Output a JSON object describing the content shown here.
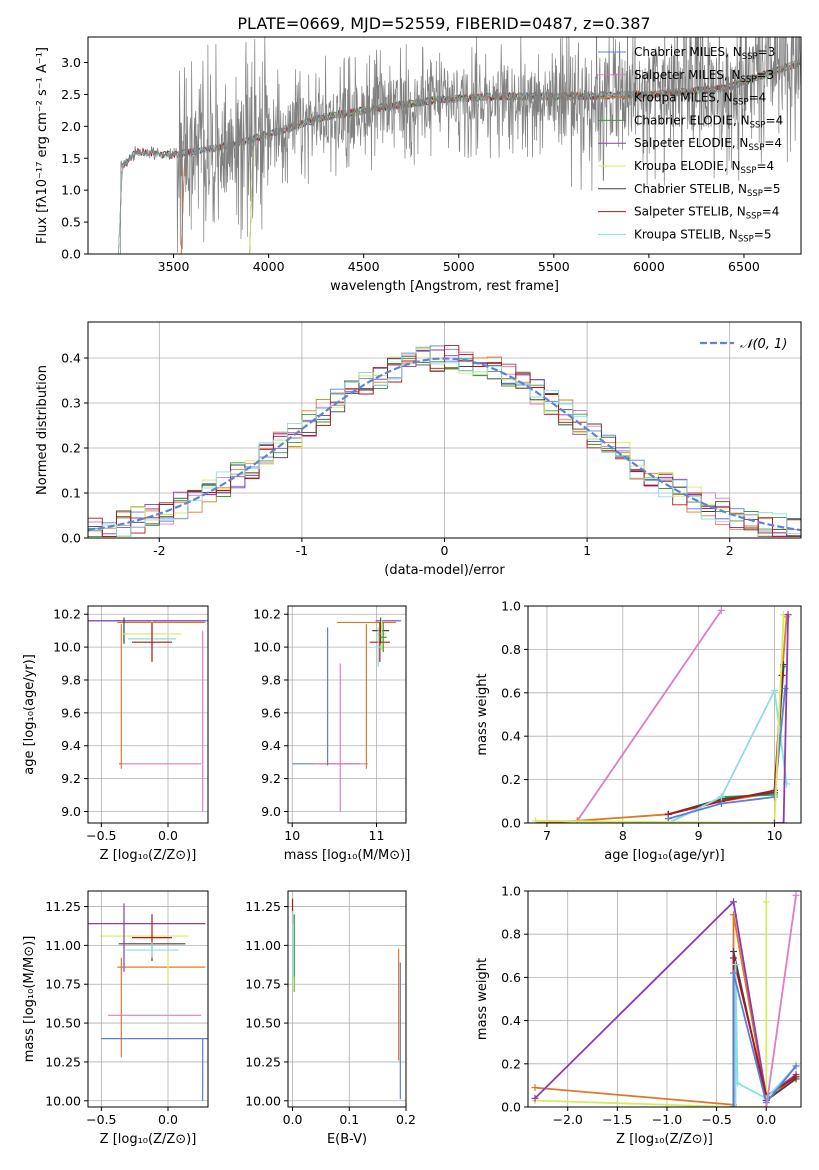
{
  "figure": {
    "title": "PLATE=0669, MJD=52559, FIBERID=0487, z=0.387"
  },
  "chart_data": [
    {
      "id": "spectrum",
      "type": "line",
      "xlabel": "wavelength [Angstrom, rest frame]",
      "ylabel": "Flux [fλ10⁻¹⁷ erg cm⁻² s⁻¹ A⁻¹]",
      "xlim": [
        3050,
        6800
      ],
      "ylim": [
        0,
        3.4
      ],
      "xticks": [
        3500,
        4000,
        4500,
        5000,
        5500,
        6000,
        6500
      ],
      "yticks": [
        0.0,
        0.5,
        1.0,
        1.5,
        2.0,
        2.5,
        3.0
      ],
      "grid": false,
      "legend_position": "top-right",
      "data_color": "#808080",
      "data_start": 3210,
      "data_end": 6800,
      "continuum": [
        [
          3210,
          1.3
        ],
        [
          3300,
          1.6
        ],
        [
          3500,
          1.55
        ],
        [
          3800,
          1.7
        ],
        [
          4000,
          1.88
        ],
        [
          4300,
          2.15
        ],
        [
          4600,
          2.3
        ],
        [
          4900,
          2.42
        ],
        [
          5200,
          2.47
        ],
        [
          5600,
          2.47
        ],
        [
          6000,
          2.5
        ],
        [
          6400,
          2.6
        ],
        [
          6800,
          3.0
        ]
      ],
      "series": [
        {
          "name": "Chabrier MILES, N",
          "sub": "SSP",
          "count": "=3",
          "color": "#5b7fd6",
          "start": 3540
        },
        {
          "name": "Salpeter MILES, N",
          "sub": "SSP",
          "count": "=3",
          "color": "#e07bc4",
          "start": 3540
        },
        {
          "name": "Kroupa MILES, N",
          "sub": "SSP",
          "count": "=4",
          "color": "#e0782a",
          "start": 3540
        },
        {
          "name": "Chabrier ELODIE, N",
          "sub": "SSP",
          "count": "=4",
          "color": "#3c9a3c",
          "start": 3900
        },
        {
          "name": "Salpeter ELODIE, N",
          "sub": "SSP",
          "count": "=4",
          "color": "#8a3cb4",
          "start": 3900
        },
        {
          "name": "Kroupa ELODIE, N",
          "sub": "SSP",
          "count": "=4",
          "color": "#d6ec5c",
          "start": 3900
        },
        {
          "name": "Chabrier STELIB, N",
          "sub": "SSP",
          "count": "=5",
          "color": "#444444",
          "start": 3210
        },
        {
          "name": "Salpeter STELIB, N",
          "sub": "SSP",
          "count": "=4",
          "color": "#b01818",
          "start": 3210
        },
        {
          "name": "Kroupa STELIB, N",
          "sub": "SSP",
          "count": "=5",
          "color": "#8ae0e0",
          "start": 3210
        }
      ]
    },
    {
      "id": "residuals",
      "type": "line",
      "xlabel": "(data-model)/error",
      "ylabel": "Normed distribution",
      "xlim": [
        -2.5,
        2.5
      ],
      "ylim": [
        0,
        0.48
      ],
      "xticks": [
        -2,
        -1,
        0,
        1,
        2
      ],
      "yticks": [
        0.0,
        0.1,
        0.2,
        0.3,
        0.4
      ],
      "grid": true,
      "legend_position": "top-right",
      "normal_curve_label": "𝒩(0, 1)",
      "normal_curve_color": "#5b86d6",
      "bin_width": 0.1
    },
    {
      "id": "age-vs-z",
      "type": "scatter",
      "xlabel": "Z [log₁₀(Z/Z⊙)]",
      "ylabel": "age  [log₁₀(age/yr)]",
      "xlim": [
        -0.6,
        0.3
      ],
      "ylim": [
        8.93,
        10.25
      ],
      "xticks": [
        -0.5,
        0.0
      ],
      "xticklabels": [
        "−0.5",
        "0.0"
      ],
      "yticks": [
        9.0,
        9.2,
        9.4,
        9.6,
        9.8,
        10.0,
        10.2
      ],
      "yticklabels": [
        "9.0",
        "9.2",
        "9.4",
        "9.6",
        "9.8",
        "10.0",
        "10.2"
      ],
      "grid": true,
      "points": [
        {
          "x": -0.2,
          "y": 10.16,
          "xerr": 0.5,
          "yerr": 0.0,
          "color": "#5b7fd6"
        },
        {
          "x": -0.18,
          "y": 10.16,
          "xerr": 0.46,
          "yerr": 0.0,
          "color": "#8a3cb4"
        },
        {
          "x": -0.05,
          "y": 10.15,
          "xerr": 0.33,
          "yerr": 0.0,
          "color": "#e0782a"
        },
        {
          "x": -0.33,
          "y": 10.1,
          "xerr": 0.0,
          "yerr": 0.08,
          "color": "#444444"
        },
        {
          "x": -0.12,
          "y": 10.08,
          "xerr": 0.22,
          "yerr": 0.08,
          "color": "#d6ec5c"
        },
        {
          "x": -0.12,
          "y": 10.05,
          "xerr": 0.18,
          "yerr": 0.1,
          "color": "#8ae0e0"
        },
        {
          "x": -0.12,
          "y": 10.03,
          "xerr": 0.15,
          "yerr": 0.12,
          "color": "#b01818"
        },
        {
          "x": -0.05,
          "y": 9.29,
          "xerr": 0.3,
          "yerr": 0.0,
          "color": "#e07bc4"
        },
        {
          "x": -0.36,
          "y": 9.29,
          "xerr": 0.0,
          "yerr": 0.0,
          "color": "#5b7fd6"
        },
        {
          "x": 0.26,
          "y": 9.55,
          "xerr": 0.0,
          "yerr": 0.55,
          "color": "#e07bc4"
        },
        {
          "x": -0.35,
          "y": 9.7,
          "xerr": 0.0,
          "yerr": 0.44,
          "color": "#e0782a"
        }
      ]
    },
    {
      "id": "age-vs-mass",
      "type": "scatter",
      "xlabel": "mass [log₁₀(M/M⊙)]",
      "ylabel": "",
      "xlim": [
        9.95,
        11.35
      ],
      "ylim": [
        8.93,
        10.25
      ],
      "xticks": [
        10,
        11
      ],
      "xticklabels": [
        "10",
        "11"
      ],
      "yticks": [
        9.0,
        9.2,
        9.4,
        9.6,
        9.8,
        10.0,
        10.2
      ],
      "yticklabels": [
        "9.0",
        "9.2",
        "9.4",
        "9.6",
        "9.8",
        "10.0",
        "10.2"
      ],
      "grid": true,
      "points": [
        {
          "x": 10.4,
          "y": 9.29,
          "xerr": 0.4,
          "yerr": 0.0,
          "color": "#5b7fd6"
        },
        {
          "x": 10.58,
          "y": 9.29,
          "xerr": 0.32,
          "yerr": 0.0,
          "color": "#e07bc4"
        },
        {
          "x": 10.42,
          "y": 9.7,
          "xerr": 0.0,
          "yerr": 0.42,
          "color": "#5b7fd6"
        },
        {
          "x": 10.57,
          "y": 9.45,
          "xerr": 0.0,
          "yerr": 0.45,
          "color": "#e07bc4"
        },
        {
          "x": 10.88,
          "y": 10.15,
          "xerr": 0.35,
          "yerr": 0.0,
          "color": "#e0782a"
        },
        {
          "x": 10.88,
          "y": 9.7,
          "xerr": 0.0,
          "yerr": 0.44,
          "color": "#e0782a"
        },
        {
          "x": 11.14,
          "y": 10.16,
          "xerr": 0.15,
          "yerr": 0.0,
          "color": "#8a3cb4"
        },
        {
          "x": 11.05,
          "y": 10.1,
          "xerr": 0.1,
          "yerr": 0.08,
          "color": "#444444"
        },
        {
          "x": 11.06,
          "y": 10.08,
          "xerr": 0.06,
          "yerr": 0.1,
          "color": "#d6ec5c"
        },
        {
          "x": 11.04,
          "y": 10.03,
          "xerr": 0.12,
          "yerr": 0.12,
          "color": "#b01818"
        },
        {
          "x": 11.02,
          "y": 10.0,
          "xerr": 0.05,
          "yerr": 0.12,
          "color": "#8ae0e0"
        },
        {
          "x": 11.08,
          "y": 10.06,
          "xerr": 0.04,
          "yerr": 0.09,
          "color": "#3c9a3c"
        }
      ]
    },
    {
      "id": "weight-vs-age",
      "type": "line",
      "xlabel": "age  [log₁₀(age/yr)]",
      "ylabel": "mass weight",
      "xlim": [
        6.75,
        10.35
      ],
      "ylim": [
        0,
        1.0
      ],
      "xticks": [
        7,
        8,
        9,
        10
      ],
      "xticklabels": [
        "7",
        "8",
        "9",
        "10"
      ],
      "yticks": [
        0.0,
        0.2,
        0.4,
        0.6,
        0.8,
        1.0
      ],
      "yticklabels": [
        "0.0",
        "0.2",
        "0.4",
        "0.6",
        "0.8",
        "1.0"
      ],
      "grid": true,
      "series": [
        {
          "color": "#e07bc4",
          "values": [
            [
              7.4,
              0.01
            ],
            [
              9.3,
              0.98
            ]
          ]
        },
        {
          "color": "#e0782a",
          "values": [
            [
              6.85,
              0.0
            ],
            [
              7.4,
              0.01
            ],
            [
              8.6,
              0.04
            ],
            [
              9.3,
              0.1
            ],
            [
              10.0,
              0.14
            ],
            [
              10.1,
              0.68
            ],
            [
              10.16,
              0.95
            ]
          ]
        },
        {
          "color": "#3c9a3c",
          "values": [
            [
              8.6,
              0.0
            ],
            [
              9.3,
              0.12
            ],
            [
              10.0,
              0.13
            ],
            [
              10.12,
              0.72
            ]
          ]
        },
        {
          "color": "#444444",
          "values": [
            [
              8.6,
              0.04
            ],
            [
              9.3,
              0.11
            ],
            [
              10.0,
              0.14
            ],
            [
              10.12,
              0.73
            ]
          ]
        },
        {
          "color": "#b01818",
          "values": [
            [
              8.6,
              0.04
            ],
            [
              9.3,
              0.1
            ],
            [
              10.0,
              0.15
            ],
            [
              10.1,
              0.68
            ]
          ]
        },
        {
          "color": "#8ae0e0",
          "values": [
            [
              8.6,
              0.0
            ],
            [
              9.3,
              0.12
            ],
            [
              10.0,
              0.61
            ],
            [
              10.16,
              0.18
            ]
          ]
        },
        {
          "color": "#5b7fd6",
          "values": [
            [
              8.6,
              0.02
            ],
            [
              9.3,
              0.09
            ],
            [
              10.0,
              0.12
            ],
            [
              10.14,
              0.62
            ]
          ]
        },
        {
          "color": "#d6ec5c",
          "values": [
            [
              6.85,
              0.01
            ],
            [
              10.0,
              0.0
            ],
            [
              10.12,
              0.96
            ]
          ]
        },
        {
          "color": "#8a3cb4",
          "values": [
            [
              10.0,
              0.0
            ],
            [
              10.12,
              0.0
            ],
            [
              10.18,
              0.96
            ]
          ]
        }
      ]
    },
    {
      "id": "mass-vs-z",
      "type": "scatter",
      "xlabel": "Z [log₁₀(Z/Z⊙)]",
      "ylabel": "mass [log₁₀(M/M⊙)]",
      "xlim": [
        -0.6,
        0.3
      ],
      "ylim": [
        9.96,
        11.35
      ],
      "xticks": [
        -0.5,
        0.0
      ],
      "xticklabels": [
        "−0.5",
        "0.0"
      ],
      "yticks": [
        10.0,
        10.25,
        10.5,
        10.75,
        11.0,
        11.25
      ],
      "yticklabels": [
        "10.00",
        "10.25",
        "10.50",
        "10.75",
        "11.00",
        "11.25"
      ],
      "grid": true,
      "points": [
        {
          "x": -0.18,
          "y": 11.14,
          "xerr": 0.46,
          "yerr": 0.0,
          "color": "#8a3cb4"
        },
        {
          "x": -0.18,
          "y": 11.06,
          "xerr": 0.33,
          "yerr": 0.0,
          "color": "#d6ec5c"
        },
        {
          "x": -0.12,
          "y": 11.01,
          "xerr": 0.25,
          "yerr": 0.0,
          "color": "#444444"
        },
        {
          "x": -0.12,
          "y": 11.05,
          "xerr": 0.15,
          "yerr": 0.15,
          "color": "#b01818"
        },
        {
          "x": -0.12,
          "y": 10.97,
          "xerr": 0.2,
          "yerr": 0.05,
          "color": "#8ae0e0"
        },
        {
          "x": -0.33,
          "y": 11.05,
          "xerr": 0.0,
          "yerr": 0.22,
          "color": "#8a3cb4"
        },
        {
          "x": -0.05,
          "y": 10.86,
          "xerr": 0.33,
          "yerr": 0.0,
          "color": "#e0782a"
        },
        {
          "x": -0.35,
          "y": 10.6,
          "xerr": 0.0,
          "yerr": 0.32,
          "color": "#e0782a"
        },
        {
          "x": -0.1,
          "y": 10.55,
          "xerr": 0.35,
          "yerr": 0.0,
          "color": "#e07bc4"
        },
        {
          "x": -0.1,
          "y": 10.4,
          "xerr": 0.4,
          "yerr": 0.0,
          "color": "#5b7fd6"
        },
        {
          "x": 0.26,
          "y": 10.2,
          "xerr": 0.0,
          "yerr": 0.2,
          "color": "#5b7fd6"
        },
        {
          "x": 0.0,
          "y": 10.85,
          "xerr": 0.0,
          "yerr": 0.1,
          "color": "#d6ec5c"
        }
      ]
    },
    {
      "id": "mass-vs-ebv",
      "type": "scatter",
      "xlabel": "E(B-V)",
      "ylabel": "",
      "xlim": [
        -0.008,
        0.2
      ],
      "ylim": [
        9.96,
        11.35
      ],
      "xticks": [
        0.0,
        0.1,
        0.2
      ],
      "xticklabels": [
        "0.0",
        "0.1",
        "0.2"
      ],
      "yticks": [
        10.0,
        10.25,
        10.5,
        10.75,
        11.0,
        11.25
      ],
      "yticklabels": [
        "10.00",
        "10.25",
        "10.50",
        "10.75",
        "11.00",
        "11.25"
      ],
      "grid": true,
      "points": [
        {
          "x": 0.0,
          "y": 11.22,
          "xerr": 0.0,
          "yerr": 0.08,
          "color": "#b01818"
        },
        {
          "x": 0.0,
          "y": 11.0,
          "xerr": 0.0,
          "yerr": 0.22,
          "color": "#8ae0e0"
        },
        {
          "x": 0.003,
          "y": 10.95,
          "xerr": 0.0,
          "yerr": 0.25,
          "color": "#3c9a3c"
        },
        {
          "x": 0.002,
          "y": 10.75,
          "xerr": 0.0,
          "yerr": 0.05,
          "color": "#d6ec5c"
        },
        {
          "x": 0.187,
          "y": 10.62,
          "xerr": 0.0,
          "yerr": 0.36,
          "color": "#e0782a"
        },
        {
          "x": 0.19,
          "y": 10.45,
          "xerr": 0.0,
          "yerr": 0.44,
          "color": "#5b7fd6"
        }
      ]
    },
    {
      "id": "weight-vs-z",
      "type": "line",
      "xlabel": "Z [log₁₀(Z/Z⊙)]",
      "ylabel": "mass weight",
      "xlim": [
        -2.4,
        0.35
      ],
      "ylim": [
        0,
        1.0
      ],
      "xticks": [
        -2.0,
        -1.5,
        -1.0,
        -0.5,
        0.0
      ],
      "xticklabels": [
        "−2.0",
        "−1.5",
        "−1.0",
        "−0.5",
        "0.0"
      ],
      "yticks": [
        0.0,
        0.2,
        0.4,
        0.6,
        0.8,
        1.0
      ],
      "yticklabels": [
        "0.0",
        "0.2",
        "0.4",
        "0.6",
        "0.8",
        "1.0"
      ],
      "grid": true,
      "series": [
        {
          "color": "#e0782a",
          "values": [
            [
              -2.33,
              0.09
            ],
            [
              -0.33,
              0.01
            ],
            [
              -0.33,
              0.89
            ],
            [
              0.0,
              0.03
            ],
            [
              0.3,
              0.14
            ]
          ]
        },
        {
          "color": "#d6ec5c",
          "values": [
            [
              -2.33,
              0.03
            ],
            [
              -0.33,
              0.0
            ],
            [
              0.0,
              0.0
            ],
            [
              0.0,
              0.95
            ]
          ]
        },
        {
          "color": "#8a3cb4",
          "values": [
            [
              -2.33,
              0.04
            ],
            [
              -0.33,
              0.95
            ],
            [
              0.0,
              0.05
            ],
            [
              0.3,
              0.15
            ]
          ]
        },
        {
          "color": "#444444",
          "values": [
            [
              -0.33,
              0.0
            ],
            [
              -0.33,
              0.72
            ],
            [
              0.0,
              0.03
            ],
            [
              0.3,
              0.13
            ]
          ]
        },
        {
          "color": "#b01818",
          "values": [
            [
              -0.33,
              0.0
            ],
            [
              -0.33,
              0.69
            ],
            [
              0.0,
              0.05
            ],
            [
              0.3,
              0.14
            ]
          ]
        },
        {
          "color": "#8ae0e0",
          "values": [
            [
              -0.31,
              0.0
            ],
            [
              -0.31,
              0.66
            ],
            [
              -0.29,
              0.11
            ],
            [
              0.0,
              0.04
            ],
            [
              0.3,
              0.19
            ]
          ]
        },
        {
          "color": "#5b7fd6",
          "values": [
            [
              -0.33,
              0.0
            ],
            [
              -0.33,
              0.62
            ],
            [
              0.0,
              0.02
            ],
            [
              0.3,
              0.19
            ]
          ]
        },
        {
          "color": "#e07bc4",
          "values": [
            [
              0.0,
              0.0
            ],
            [
              0.3,
              0.98
            ]
          ]
        }
      ]
    }
  ]
}
